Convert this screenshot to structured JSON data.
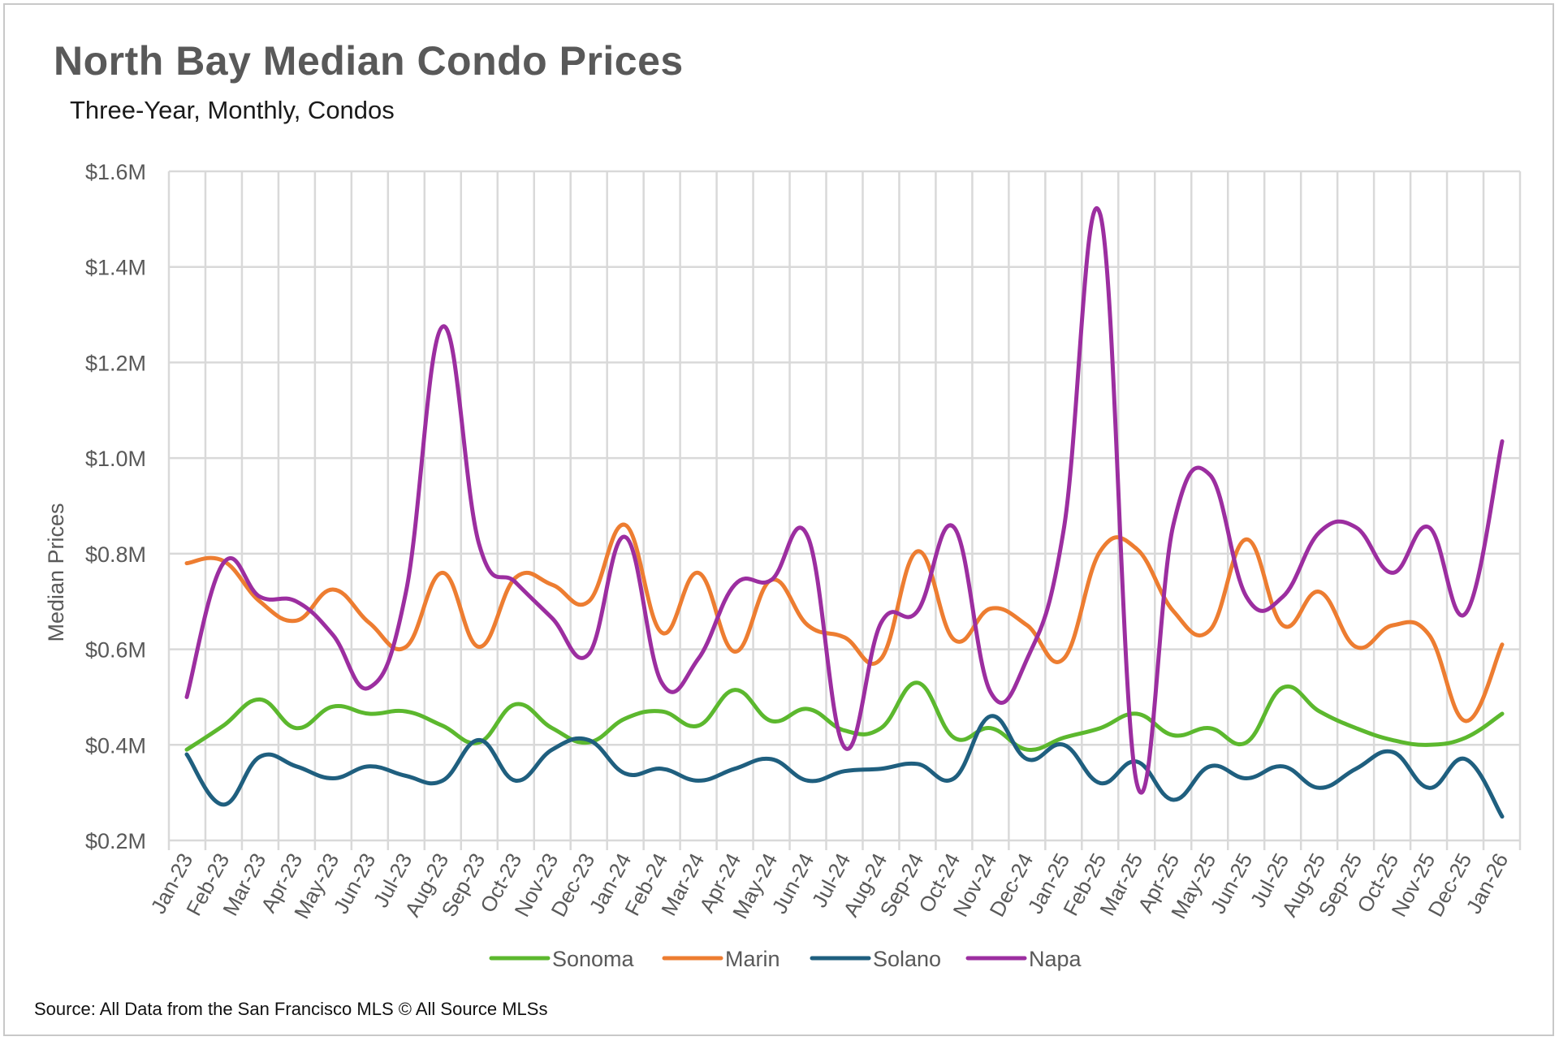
{
  "title": "North Bay Median Condo Prices",
  "subtitle": "Three-Year, Monthly, Condos",
  "source": "Source: All Data from the San Francisco MLS © All Source MLSs",
  "colors": {
    "grid": "#d9d9d9",
    "axis_text": "#595959",
    "sonoma": "#5cb82e",
    "marin": "#ed7d31",
    "solano": "#1f5f7f",
    "napa": "#9c2ea0"
  },
  "chart_data": {
    "type": "line",
    "title": "North Bay Median Condo Prices",
    "subtitle": "Three-Year, Monthly, Condos",
    "xlabel": "",
    "ylabel": "Median Prices",
    "ylim": [
      200000,
      1600000
    ],
    "yticks": [
      200000,
      400000,
      600000,
      800000,
      1000000,
      1200000,
      1400000,
      1600000
    ],
    "ytick_labels": [
      "$0.2M",
      "$0.4M",
      "$0.6M",
      "$0.8M",
      "$1.0M",
      "$1.2M",
      "$1.4M",
      "$1.6M"
    ],
    "grid": true,
    "legend_position": "bottom",
    "x": [
      "Jan-23",
      "Feb-23",
      "Mar-23",
      "Apr-23",
      "May-23",
      "Jun-23",
      "Jul-23",
      "Aug-23",
      "Sep-23",
      "Oct-23",
      "Nov-23",
      "Dec-23",
      "Jan-24",
      "Feb-24",
      "Mar-24",
      "Apr-24",
      "May-24",
      "Jun-24",
      "Jul-24",
      "Aug-24",
      "Sep-24",
      "Oct-24",
      "Nov-24",
      "Dec-24",
      "Jan-25",
      "Feb-25",
      "Mar-25",
      "Apr-25",
      "May-25",
      "Jun-25",
      "Jul-25",
      "Aug-25",
      "Sep-25",
      "Oct-25",
      "Nov-25",
      "Dec-25",
      "Jan-26"
    ],
    "series": [
      {
        "name": "Sonoma",
        "color": "#5cb82e",
        "values": [
          390000,
          440000,
          495000,
          435000,
          480000,
          465000,
          470000,
          440000,
          405000,
          485000,
          435000,
          405000,
          455000,
          470000,
          440000,
          515000,
          450000,
          475000,
          430000,
          435000,
          530000,
          415000,
          435000,
          390000,
          415000,
          435000,
          465000,
          420000,
          435000,
          405000,
          520000,
          470000,
          435000,
          410000,
          400000,
          415000,
          465000
        ]
      },
      {
        "name": "Marin",
        "color": "#ed7d31",
        "values": [
          780000,
          785000,
          700000,
          660000,
          725000,
          655000,
          605000,
          760000,
          605000,
          750000,
          735000,
          700000,
          860000,
          635000,
          760000,
          595000,
          745000,
          650000,
          625000,
          580000,
          805000,
          620000,
          685000,
          650000,
          580000,
          805000,
          810000,
          680000,
          640000,
          830000,
          650000,
          720000,
          605000,
          650000,
          630000,
          450000,
          610000
        ]
      },
      {
        "name": "Solano",
        "color": "#1f5f7f",
        "values": [
          380000,
          275000,
          375000,
          355000,
          330000,
          355000,
          335000,
          325000,
          410000,
          325000,
          390000,
          410000,
          340000,
          350000,
          325000,
          350000,
          370000,
          325000,
          345000,
          350000,
          360000,
          330000,
          460000,
          370000,
          400000,
          320000,
          365000,
          285000,
          355000,
          330000,
          355000,
          310000,
          350000,
          385000,
          310000,
          370000,
          250000
        ]
      },
      {
        "name": "Napa",
        "color": "#9c2ea0",
        "values": [
          500000,
          780000,
          710000,
          700000,
          630000,
          520000,
          720000,
          1275000,
          820000,
          740000,
          665000,
          590000,
          835000,
          530000,
          580000,
          735000,
          745000,
          835000,
          395000,
          655000,
          680000,
          855000,
          510000,
          580000,
          850000,
          1510000,
          320000,
          860000,
          965000,
          710000,
          710000,
          845000,
          855000,
          760000,
          855000,
          675000,
          1035000
        ]
      }
    ]
  }
}
